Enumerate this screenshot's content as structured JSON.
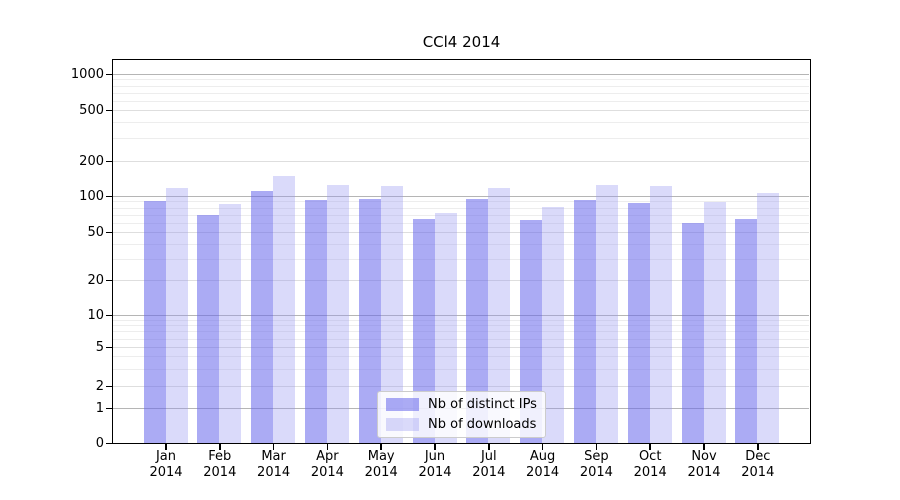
{
  "chart_data": {
    "type": "bar",
    "title": "CCl4 2014",
    "year": "2014",
    "months": [
      "Jan",
      "Feb",
      "Mar",
      "Apr",
      "May",
      "Jun",
      "Jul",
      "Aug",
      "Sep",
      "Oct",
      "Nov",
      "Dec"
    ],
    "categories": [
      "Jan 2014",
      "Feb 2014",
      "Mar 2014",
      "Apr 2014",
      "May 2014",
      "Jun 2014",
      "Jul 2014",
      "Aug 2014",
      "Sep 2014",
      "Oct 2014",
      "Nov 2014",
      "Dec 2014"
    ],
    "series": [
      {
        "name": "Nb of distinct IPs",
        "color": "#6666eb",
        "alpha": 0.55,
        "values": [
          90,
          70,
          110,
          93,
          94,
          64,
          94,
          63,
          93,
          87,
          60,
          64
        ]
      },
      {
        "name": "Nb of downloads",
        "color": "#9696f0",
        "alpha": 0.35,
        "values": [
          117,
          85,
          148,
          124,
          122,
          72,
          117,
          81,
          124,
          122,
          89,
          106
        ]
      }
    ],
    "y_ticks": [
      0,
      1,
      2,
      5,
      10,
      20,
      50,
      100,
      200,
      500,
      1000
    ],
    "y_scale": "symlog",
    "ylim": [
      0,
      1000
    ],
    "xlabel": "",
    "ylabel": "",
    "grid": true,
    "legend_position": "lower center"
  }
}
